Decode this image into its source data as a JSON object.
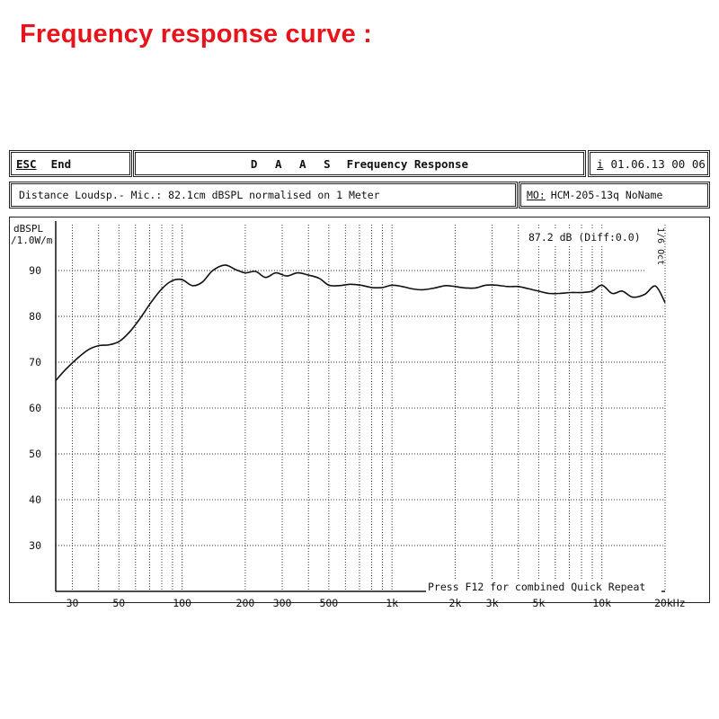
{
  "page": {
    "title": "Frequency response curve :"
  },
  "header": {
    "esc_label": "ESC",
    "end_label": "End",
    "app_name": "D A A S",
    "screen_title": "Frequency Response",
    "info_label": "i",
    "datetime": "01.06.13 00 06"
  },
  "info_bar": {
    "measurement_text": "Distance Loudsp.- Mic.: 82.1cm dBSPL normalised on 1 Meter",
    "model_label": "MO:",
    "model_name": "HCM-205-13q NoName"
  },
  "chart_data": {
    "type": "line",
    "title": "",
    "ylabel": "dBSPL /1.0W/m",
    "ylabel_lines": [
      "dBSPL",
      "/1.0W/m"
    ],
    "xlabel": "",
    "x_scale": "log",
    "xlim": [
      25,
      20000
    ],
    "ylim": [
      20,
      100
    ],
    "grid": true,
    "x_tick_labels": [
      {
        "value": 30,
        "label": "30"
      },
      {
        "value": 50,
        "label": "50"
      },
      {
        "value": 100,
        "label": "100"
      },
      {
        "value": 200,
        "label": "200"
      },
      {
        "value": 300,
        "label": "300"
      },
      {
        "value": 500,
        "label": "500"
      },
      {
        "value": 1000,
        "label": "1k"
      },
      {
        "value": 2000,
        "label": "2k"
      },
      {
        "value": 3000,
        "label": "3k"
      },
      {
        "value": 5000,
        "label": "5k"
      },
      {
        "value": 10000,
        "label": "10k"
      },
      {
        "value": 20000,
        "label": "20kHz"
      }
    ],
    "y_ticks": [
      30,
      40,
      50,
      60,
      70,
      80,
      90
    ],
    "annotation": "87.2 dB (Diff:0.0)",
    "side_label": "1/6 Oct",
    "footer_text": "Press F12 for combined Quick Repeat",
    "series": [
      {
        "x": [
          25,
          28,
          32,
          36,
          40,
          45,
          50,
          56,
          63,
          71,
          80,
          90,
          100,
          112,
          125,
          140,
          160,
          180,
          200,
          224,
          250,
          280,
          315,
          355,
          400,
          450,
          500,
          560,
          630,
          710,
          800,
          900,
          1000,
          1120,
          1250,
          1400,
          1600,
          1800,
          2000,
          2240,
          2500,
          2800,
          3150,
          3550,
          4000,
          4500,
          5000,
          5600,
          6300,
          7100,
          8000,
          9000,
          10000,
          11200,
          12500,
          14000,
          16000,
          18000,
          20000
        ],
        "y": [
          66,
          68.5,
          71,
          72.8,
          73.6,
          73.8,
          74.5,
          76.5,
          79.5,
          83,
          86,
          87.8,
          88,
          86.7,
          87.5,
          90,
          91.2,
          90.2,
          89.5,
          89.8,
          88.5,
          89.5,
          88.8,
          89.5,
          89,
          88.3,
          86.8,
          86.7,
          87,
          86.8,
          86.3,
          86.3,
          86.8,
          86.5,
          86,
          85.8,
          86.2,
          86.7,
          86.5,
          86.2,
          86.2,
          86.8,
          86.8,
          86.5,
          86.5,
          86,
          85.5,
          85,
          85,
          85.2,
          85.2,
          85.5,
          86.8,
          85,
          85.5,
          84.2,
          84.8,
          86.6,
          83
        ]
      }
    ]
  }
}
